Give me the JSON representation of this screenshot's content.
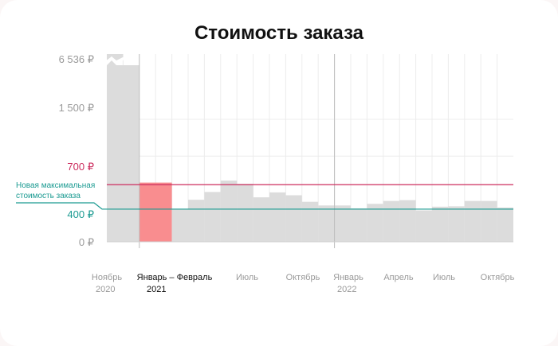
{
  "title": "Стоимость заказа",
  "annotation": {
    "line1": "Новая максимальная",
    "line2": "стоимость заказа"
  },
  "colors": {
    "bar": "#dcdcdc",
    "highlight_bar": "#f98d8f",
    "line_700": "#cc2d5e",
    "line_400": "#1a9a91",
    "grid": "#ececec",
    "tick_label": "#9a9a9a",
    "highlight_label": "#111111",
    "year_divider": "#bdbdbd"
  },
  "chart_data": {
    "type": "bar",
    "title": "Стоимость заказа",
    "y_axis_break": true,
    "y_ticks": [
      {
        "label": "6 536 ₽",
        "value": 6536
      },
      {
        "label": "1 500 ₽",
        "value": 1500
      },
      {
        "label": "700 ₽",
        "value": 700,
        "color": "#cc2d5e"
      },
      {
        "label": "400 ₽",
        "value": 400,
        "color": "#1a9a91"
      },
      {
        "label": "0 ₽",
        "value": 0
      }
    ],
    "reference_lines": [
      {
        "value": 700,
        "color": "#cc2d5e"
      },
      {
        "value": 400,
        "color": "#1a9a91",
        "annotation": "Новая максимальная стоимость заказа"
      }
    ],
    "x_tick_labels": [
      {
        "line1": "Ноябрь",
        "line2": "2020",
        "highlight": false
      },
      {
        "line1": "Январь – Февраль",
        "line2": "2021",
        "highlight": true
      },
      {
        "line1": "Июль",
        "line2": "",
        "highlight": false
      },
      {
        "line1": "Октябрь",
        "line2": "",
        "highlight": false
      },
      {
        "line1": "Январь",
        "line2": "2022",
        "highlight": false
      },
      {
        "line1": "Апрель",
        "line2": "",
        "highlight": false
      },
      {
        "line1": "Июль",
        "line2": "",
        "highlight": false
      },
      {
        "line1": "Октябрь",
        "line2": "",
        "highlight": false
      }
    ],
    "bars": [
      {
        "period": "Ноябрь – Декабрь 2020",
        "value": 6536,
        "broken": true
      },
      {
        "period": "Январь – Февраль 2021",
        "value": 725,
        "highlight": true
      },
      {
        "period": "Март 2021",
        "value": 395
      },
      {
        "period": "Апрель 2021",
        "value": 515
      },
      {
        "period": "Май 2021",
        "value": 610
      },
      {
        "period": "Июнь 2021",
        "value": 750
      },
      {
        "period": "Июль 2021",
        "value": 710
      },
      {
        "period": "Август 2021",
        "value": 545
      },
      {
        "period": "Сентябрь 2021",
        "value": 605
      },
      {
        "period": "Октябрь 2021",
        "value": 570
      },
      {
        "period": "Ноябрь 2021",
        "value": 490
      },
      {
        "period": "Декабрь 2021",
        "value": 445
      },
      {
        "period": "Январь 2022",
        "value": 445
      },
      {
        "period": "Февраль 2022",
        "value": 410
      },
      {
        "period": "Март 2022",
        "value": 465
      },
      {
        "period": "Апрель 2022",
        "value": 500
      },
      {
        "period": "Май 2022",
        "value": 510
      },
      {
        "period": "Июнь 2022",
        "value": 385
      },
      {
        "period": "Июль 2022",
        "value": 430
      },
      {
        "period": "Август 2022",
        "value": 435
      },
      {
        "period": "Сентябрь 2022",
        "value": 500
      },
      {
        "period": "Октябрь 2022",
        "value": 500
      },
      {
        "period": "Ноябрь 2022",
        "value": 420
      }
    ]
  }
}
